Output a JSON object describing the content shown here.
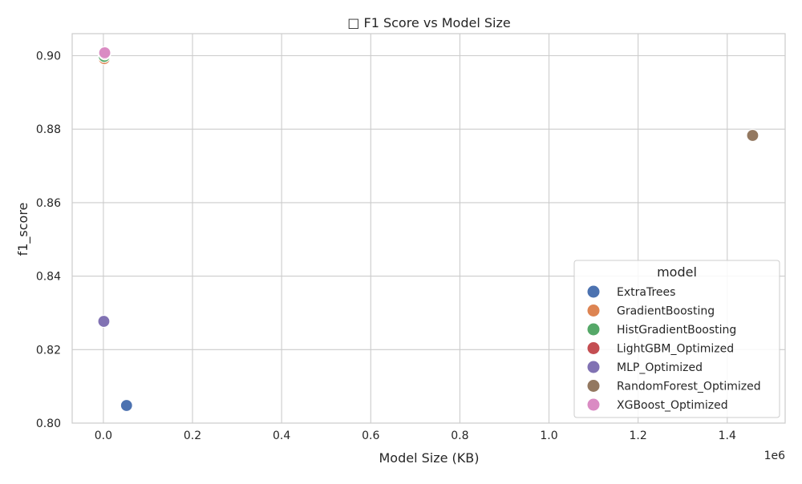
{
  "chart_data": {
    "type": "scatter",
    "title": "□ F1 Score vs Model Size",
    "xlabel": "Model Size (KB)",
    "ylabel": "f1_score",
    "x_offset_label": "1e6",
    "xlim": [
      -70000,
      1530000
    ],
    "ylim": [
      0.8,
      0.906
    ],
    "x_ticks": [
      0.0,
      0.2,
      0.4,
      0.6,
      0.8,
      1.0,
      1.2,
      1.4
    ],
    "x_tick_labels": [
      "0.0",
      "0.2",
      "0.4",
      "0.6",
      "0.8",
      "1.0",
      "1.2",
      "1.4"
    ],
    "y_ticks": [
      0.8,
      0.82,
      0.84,
      0.86,
      0.88,
      0.9
    ],
    "y_tick_labels": [
      "0.80",
      "0.82",
      "0.84",
      "0.86",
      "0.88",
      "0.90"
    ],
    "grid": true,
    "legend": {
      "title": "model",
      "placement": "lower-right"
    },
    "series": [
      {
        "name": "ExtraTrees",
        "color": "#4c72b0",
        "x": 52000,
        "y": 0.8048
      },
      {
        "name": "GradientBoosting",
        "color": "#dd8452",
        "x": 2000,
        "y": 0.8992
      },
      {
        "name": "HistGradientBoosting",
        "color": "#55a868",
        "x": 2000,
        "y": 0.8998
      },
      {
        "name": "LightGBM_Optimized",
        "color": "#c44e52",
        "x": 3000,
        "y": 0.9005
      },
      {
        "name": "MLP_Optimized",
        "color": "#8172b3",
        "x": 1000,
        "y": 0.8277
      },
      {
        "name": "RandomForest_Optimized",
        "color": "#937860",
        "x": 1457000,
        "y": 0.8783
      },
      {
        "name": "XGBoost_Optimized",
        "color": "#da8bc3",
        "x": 3000,
        "y": 0.9008
      }
    ]
  }
}
